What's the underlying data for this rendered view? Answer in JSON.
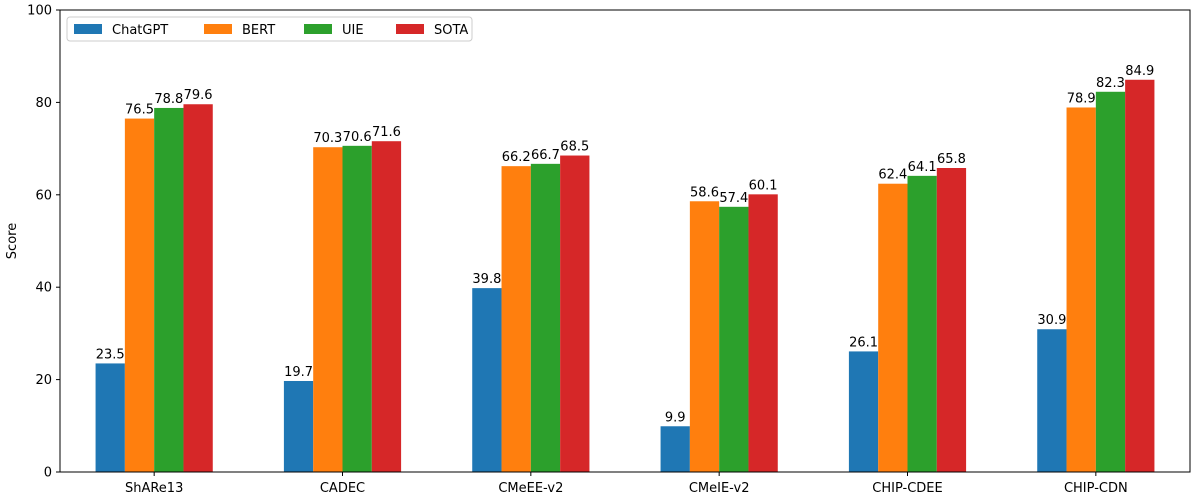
{
  "chart_data": {
    "type": "bar",
    "title": "",
    "xlabel": "",
    "ylabel": "Score",
    "ylim": [
      0,
      100
    ],
    "yticks": [
      0,
      20,
      40,
      60,
      80,
      100
    ],
    "grid": false,
    "legend_position": "top-left",
    "categories": [
      "ShARe13",
      "CADEC",
      "CMeEE-v2",
      "CMeIE-v2",
      "CHIP-CDEE",
      "CHIP-CDN"
    ],
    "series": [
      {
        "name": "ChatGPT",
        "color": "#1f77b4",
        "values": [
          23.5,
          19.7,
          39.8,
          9.9,
          26.1,
          30.9
        ]
      },
      {
        "name": "BERT",
        "color": "#ff7f0e",
        "values": [
          76.5,
          70.3,
          66.2,
          58.6,
          62.4,
          78.9
        ]
      },
      {
        "name": "UIE",
        "color": "#2ca02c",
        "values": [
          78.8,
          70.6,
          66.7,
          57.4,
          64.1,
          82.3
        ]
      },
      {
        "name": "SOTA",
        "color": "#d62728",
        "values": [
          79.6,
          71.6,
          68.5,
          60.1,
          65.8,
          84.9
        ]
      }
    ]
  }
}
